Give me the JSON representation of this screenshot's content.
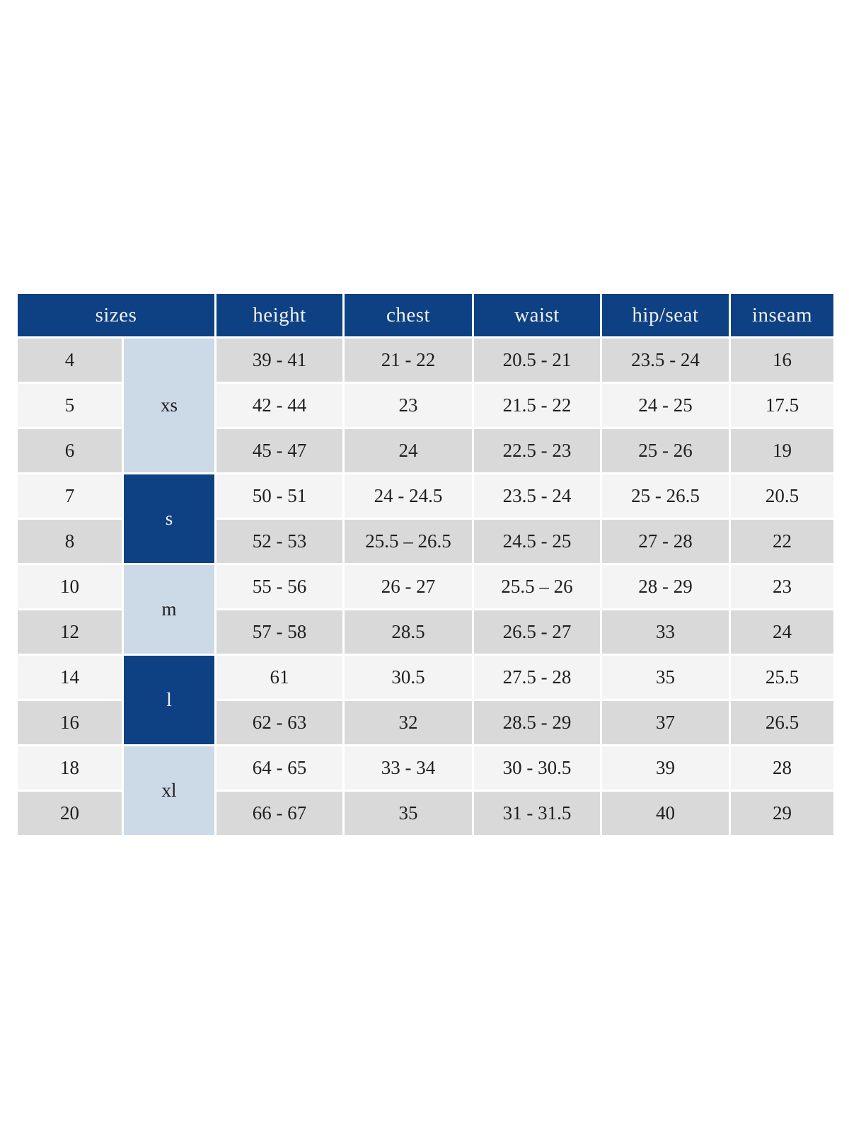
{
  "table": {
    "columns": [
      "sizes",
      "height",
      "chest",
      "waist",
      "hip/seat",
      "inseam"
    ],
    "groups": [
      {
        "label": "xs",
        "span": 3,
        "variant": "light"
      },
      {
        "label": "s",
        "span": 2,
        "variant": "dark"
      },
      {
        "label": "m",
        "span": 2,
        "variant": "light"
      },
      {
        "label": "l",
        "span": 2,
        "variant": "dark"
      },
      {
        "label": "xl",
        "span": 2,
        "variant": "light"
      }
    ],
    "rows": [
      {
        "size": "4",
        "height": "39 - 41",
        "chest": "21 - 22",
        "waist": "20.5 - 21",
        "hip_seat": "23.5 - 24",
        "inseam": "16"
      },
      {
        "size": "5",
        "height": "42 - 44",
        "chest": "23",
        "waist": "21.5 - 22",
        "hip_seat": "24 - 25",
        "inseam": "17.5"
      },
      {
        "size": "6",
        "height": "45 - 47",
        "chest": "24",
        "waist": "22.5 - 23",
        "hip_seat": "25 - 26",
        "inseam": "19"
      },
      {
        "size": "7",
        "height": "50 - 51",
        "chest": "24 - 24.5",
        "waist": "23.5 - 24",
        "hip_seat": "25 - 26.5",
        "inseam": "20.5"
      },
      {
        "size": "8",
        "height": "52 - 53",
        "chest": "25.5 – 26.5",
        "waist": "24.5 - 25",
        "hip_seat": "27 - 28",
        "inseam": "22"
      },
      {
        "size": "10",
        "height": "55 - 56",
        "chest": "26 - 27",
        "waist": "25.5 – 26",
        "hip_seat": "28 - 29",
        "inseam": "23"
      },
      {
        "size": "12",
        "height": "57 - 58",
        "chest": "28.5",
        "waist": "26.5 - 27",
        "hip_seat": "33",
        "inseam": "24"
      },
      {
        "size": "14",
        "height": "61",
        "chest": "30.5",
        "waist": "27.5 - 28",
        "hip_seat": "35",
        "inseam": "25.5"
      },
      {
        "size": "16",
        "height": "62 - 63",
        "chest": "32",
        "waist": "28.5 - 29",
        "hip_seat": "37",
        "inseam": "26.5"
      },
      {
        "size": "18",
        "height": "64 - 65",
        "chest": "33 - 34",
        "waist": "30 - 30.5",
        "hip_seat": "39",
        "inseam": "28"
      },
      {
        "size": "20",
        "height": "66 - 67",
        "chest": "35",
        "waist": "31 - 31.5",
        "hip_seat": "40",
        "inseam": "29"
      }
    ],
    "colors": {
      "header_bg": "#0e4183",
      "header_text": "#f2f2f2",
      "group_dark_bg": "#0e4183",
      "group_dark_text": "#f2f2f2",
      "group_light_bg": "#ccd9e7",
      "row_gray": "#d9d9d9",
      "row_light": "#f4f4f4",
      "cell_text": "#1f1f1f"
    }
  }
}
